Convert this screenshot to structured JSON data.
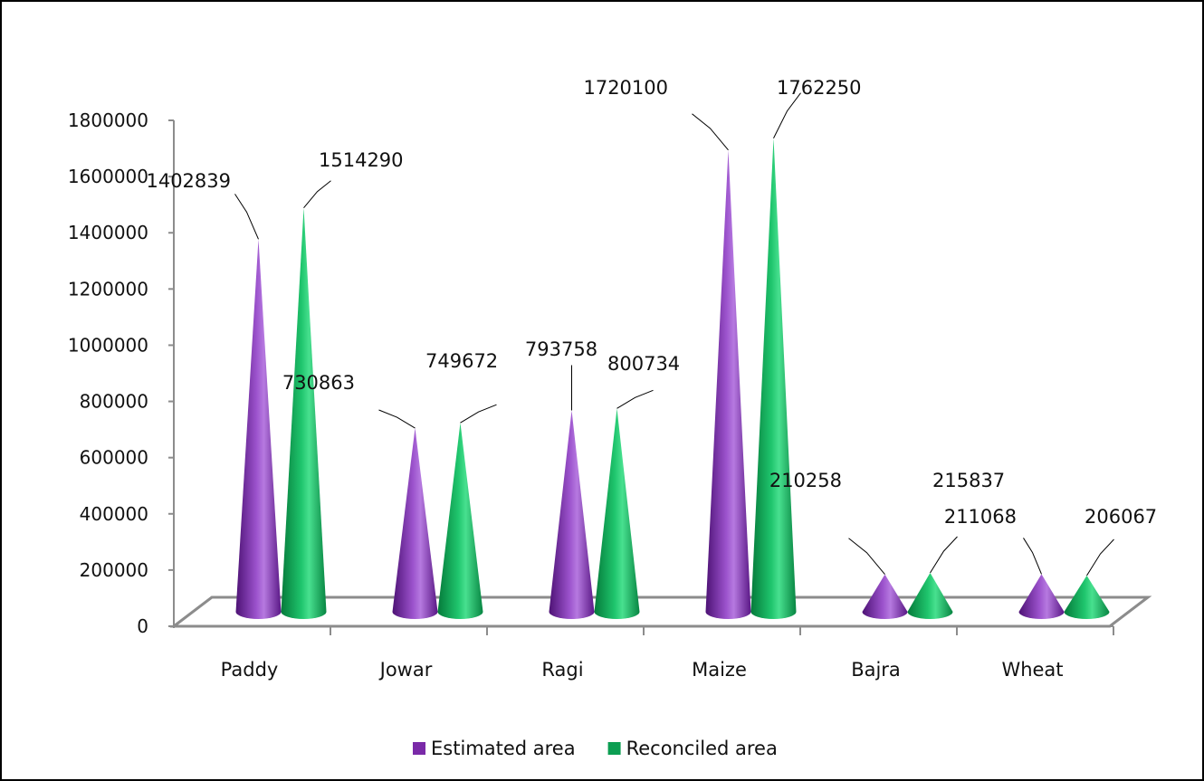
{
  "chart_data": {
    "type": "bar",
    "shape": "cone",
    "categories": [
      "Paddy",
      "Jowar",
      "Ragi",
      "Maize",
      "Bajra",
      "Wheat"
    ],
    "series": [
      {
        "name": "Estimated area",
        "color": "#7a2aa8",
        "values": [
          1402839,
          730863,
          793758,
          1720100,
          210258,
          211068
        ]
      },
      {
        "name": "Reconciled area",
        "color": "#0c9e52",
        "values": [
          1514290,
          749672,
          800734,
          1762250,
          215837,
          206067
        ]
      }
    ],
    "y_ticks": [
      "0",
      "200000",
      "400000",
      "600000",
      "800000",
      "1000000",
      "1200000",
      "1400000",
      "1600000",
      "1800000"
    ],
    "ylim": [
      0,
      1800000
    ],
    "legend_position": "bottom",
    "data_labels": true,
    "grid": false
  }
}
